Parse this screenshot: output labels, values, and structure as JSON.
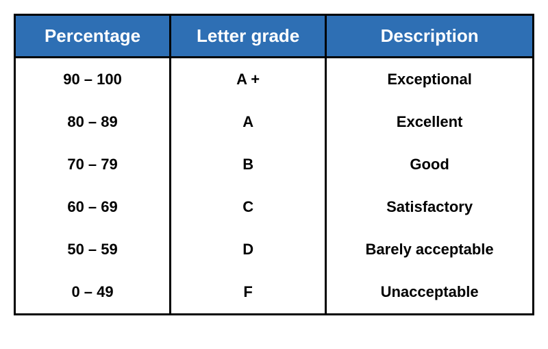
{
  "table": {
    "header_bg": "#2e6fb4",
    "header_fg": "#ffffff",
    "border_color": "#000000",
    "header_fontsize": 26,
    "cell_fontsize": 22,
    "columns": [
      "Percentage",
      "Letter grade",
      "Description"
    ],
    "column_widths_pct": [
      30,
      30,
      40
    ],
    "rows": [
      [
        "90 – 100",
        "A +",
        "Exceptional"
      ],
      [
        "80 – 89",
        "A",
        "Excellent"
      ],
      [
        "70 – 79",
        "B",
        "Good"
      ],
      [
        "60 – 69",
        "C",
        "Satisfactory"
      ],
      [
        "50 – 59",
        "D",
        "Barely acceptable"
      ],
      [
        "0 – 49",
        "F",
        "Unacceptable"
      ]
    ]
  }
}
